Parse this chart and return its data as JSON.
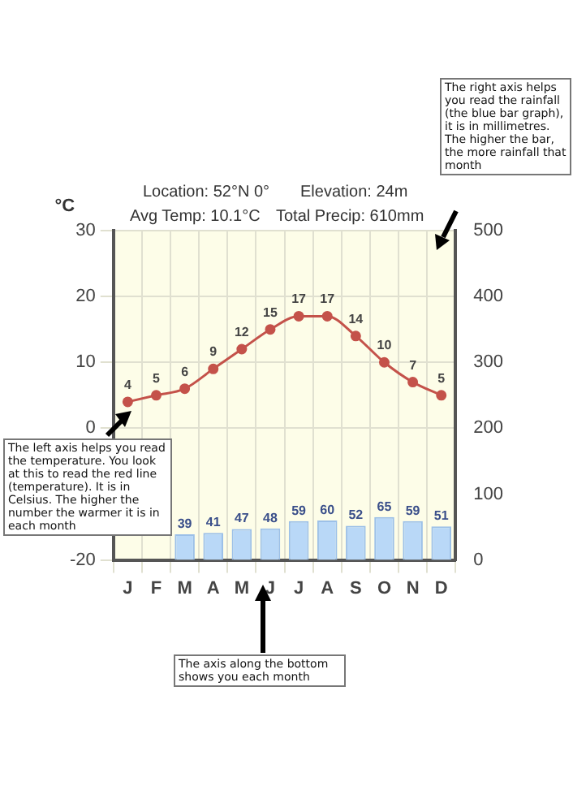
{
  "chart_data": {
    "type": "line",
    "ylabel": "°C",
    "categories": [
      "J",
      "F",
      "M",
      "A",
      "M",
      "J",
      "J",
      "A",
      "S",
      "O",
      "N",
      "D"
    ],
    "series": [
      {
        "color": "#c4524a",
        "values": [
          4,
          5,
          6,
          9,
          12,
          15,
          17,
          17,
          14,
          10,
          7,
          5
        ]
      },
      {
        "type": "bar",
        "axis": "y2",
        "color": "#b9d8f7",
        "values": [
          null,
          null,
          39,
          41,
          47,
          48,
          59,
          60,
          52,
          65,
          59,
          51
        ]
      }
    ],
    "ylim": [
      -20,
      30
    ],
    "yticks": [
      -20,
      0,
      10,
      20,
      30
    ],
    "y2lim": [
      0,
      500
    ],
    "y2ticks": [
      0,
      100,
      200,
      300,
      400,
      500
    ],
    "grid": true,
    "legend": false,
    "marker": "circle",
    "data_labels": true,
    "annotations": [
      "Location: 52°N 0°",
      "Elevation: 24m",
      "Avg Temp: 10.1°C",
      "Total Precip: 610mm",
      "The right axis helps you read the rainfall (the blue bar graph), it is in millimetres. The higher the bar, the more rainfall that month",
      "The left axis helps you read the temperature. You look at this to read the red line (temperature). It is in Celsius. The higher the number the warmer it is in each month",
      "The axis along the bottom shows you each month"
    ]
  }
}
